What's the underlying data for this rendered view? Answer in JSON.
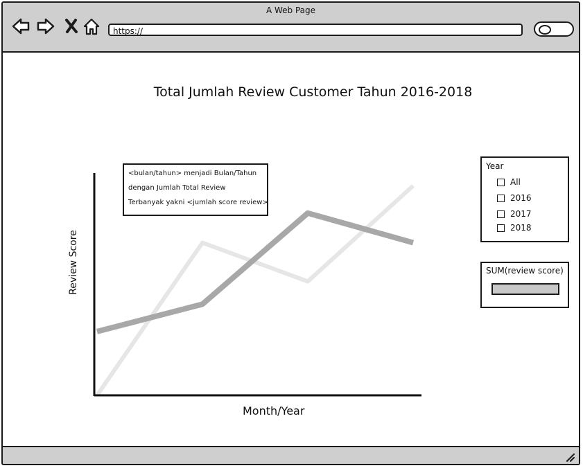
{
  "window": {
    "title": "A Web Page"
  },
  "address_bar": {
    "url": "https://"
  },
  "nav_icons": [
    "back-arrow-icon",
    "forward-arrow-icon",
    "close-x-icon",
    "home-icon"
  ],
  "search": {
    "icon": "search-icon"
  },
  "page": {
    "title": "Total Jumlah Review Customer Tahun 2016-2018"
  },
  "tooltip": {
    "line1": "<bulan/tahun> menjadi Bulan/Tahun",
    "line2": "dengan Jumlah Total Review",
    "line3": "Terbanyak yakni <jumlah score review>"
  },
  "filter": {
    "title": "Year",
    "options": [
      {
        "label": "All",
        "checked": false
      },
      {
        "label": "2016",
        "checked": false
      },
      {
        "label": "2017",
        "checked": false
      },
      {
        "label": "2018",
        "checked": false
      }
    ]
  },
  "sum": {
    "label": "SUM(review score)"
  },
  "colors": {
    "chrome": "#cfcfcf",
    "series_dark": "#a8a8a8",
    "series_light": "#e6e6e6",
    "sum_bar": "#c8c8c8"
  },
  "chart_data": {
    "type": "line",
    "xlabel": "Month/Year",
    "ylabel": "Review Score",
    "x": [
      0,
      1,
      2,
      3
    ],
    "ylim": [
      0,
      100
    ],
    "grid": false,
    "series": [
      {
        "values": [
          0,
          67,
          50,
          92
        ],
        "color": "#e6e6e6",
        "width": 6
      },
      {
        "values": [
          28,
          40,
          80,
          67
        ],
        "color": "#a8a8a8",
        "width": 8
      }
    ]
  }
}
